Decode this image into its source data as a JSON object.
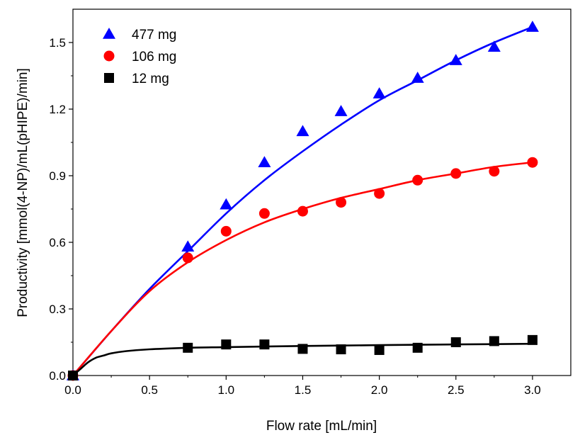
{
  "chart_data": {
    "type": "scatter",
    "title": "",
    "xlabel": "Flow rate [mL/min]",
    "ylabel": "Productivity [mmol(4-NP)/mL(pHIPE)/min]",
    "xlim": [
      0,
      3.25
    ],
    "ylim": [
      0,
      1.65
    ],
    "xticks": [
      "0.0",
      "0.5",
      "1.0",
      "1.5",
      "2.0",
      "2.5",
      "3.0"
    ],
    "yticks": [
      "0.0",
      "0.3",
      "0.6",
      "0.9",
      "1.2",
      "1.5"
    ],
    "xtick_values": [
      0,
      0.5,
      1.0,
      1.5,
      2.0,
      2.5,
      3.0
    ],
    "ytick_values": [
      0,
      0.3,
      0.6,
      0.9,
      1.2,
      1.5
    ],
    "legend_position": "top-left",
    "series": [
      {
        "name": "477 mg",
        "color": "#0000ff",
        "marker": "triangle",
        "x": [
          0,
          0.75,
          1.0,
          1.25,
          1.5,
          1.75,
          2.0,
          2.25,
          2.5,
          2.75,
          3.0
        ],
        "y": [
          0.0,
          0.58,
          0.77,
          0.96,
          1.1,
          1.19,
          1.27,
          1.34,
          1.42,
          1.48,
          1.57
        ],
        "fit": [
          [
            0,
            0
          ],
          [
            0.25,
            0.2
          ],
          [
            0.5,
            0.39
          ],
          [
            0.75,
            0.56
          ],
          [
            1.0,
            0.73
          ],
          [
            1.25,
            0.88
          ],
          [
            1.5,
            1.01
          ],
          [
            1.75,
            1.13
          ],
          [
            2.0,
            1.24
          ],
          [
            2.25,
            1.33
          ],
          [
            2.5,
            1.42
          ],
          [
            2.75,
            1.5
          ],
          [
            3.0,
            1.57
          ]
        ]
      },
      {
        "name": "106 mg",
        "color": "#ff0000",
        "marker": "circle",
        "x": [
          0,
          0.75,
          1.0,
          1.25,
          1.5,
          1.75,
          2.0,
          2.25,
          2.5,
          2.75,
          3.0
        ],
        "y": [
          0.0,
          0.53,
          0.65,
          0.73,
          0.74,
          0.78,
          0.82,
          0.88,
          0.91,
          0.92,
          0.96
        ],
        "fit": [
          [
            0,
            0
          ],
          [
            0.25,
            0.2
          ],
          [
            0.5,
            0.38
          ],
          [
            0.75,
            0.51
          ],
          [
            1.0,
            0.61
          ],
          [
            1.25,
            0.69
          ],
          [
            1.5,
            0.75
          ],
          [
            1.75,
            0.8
          ],
          [
            2.0,
            0.84
          ],
          [
            2.25,
            0.88
          ],
          [
            2.5,
            0.91
          ],
          [
            2.75,
            0.94
          ],
          [
            3.0,
            0.96
          ]
        ]
      },
      {
        "name": "12 mg",
        "color": "#000000",
        "marker": "square",
        "x": [
          0,
          0.75,
          1.0,
          1.25,
          1.5,
          1.75,
          2.0,
          2.25,
          2.5,
          2.75,
          3.0
        ],
        "y": [
          0.0,
          0.125,
          0.14,
          0.14,
          0.12,
          0.118,
          0.115,
          0.125,
          0.15,
          0.155,
          0.16
        ],
        "fit": [
          [
            0,
            0
          ],
          [
            0.05,
            0.03
          ],
          [
            0.1,
            0.06
          ],
          [
            0.15,
            0.08
          ],
          [
            0.2,
            0.09
          ],
          [
            0.25,
            0.1
          ],
          [
            0.35,
            0.11
          ],
          [
            0.5,
            0.118
          ],
          [
            0.75,
            0.125
          ],
          [
            1.0,
            0.128
          ],
          [
            1.5,
            0.133
          ],
          [
            2.0,
            0.137
          ],
          [
            2.5,
            0.14
          ],
          [
            3.0,
            0.143
          ]
        ]
      }
    ]
  }
}
